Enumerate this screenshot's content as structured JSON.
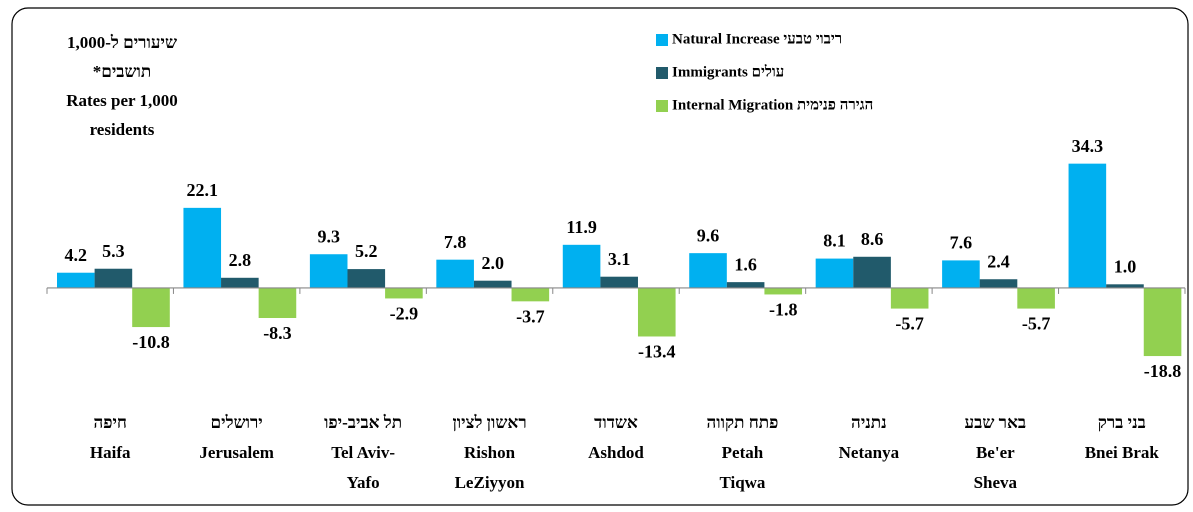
{
  "chart_data": {
    "type": "bar",
    "axis_note": [
      "שיעורים ל-1,000",
      "תושבים*",
      "Rates per 1,000",
      "residents"
    ],
    "categories": [
      [
        "חיפה",
        "Haifa"
      ],
      [
        "ירושלים",
        "Jerusalem"
      ],
      [
        "תל אביב-יפו",
        "Tel Aviv-",
        "Yafo"
      ],
      [
        "ראשון לציון",
        "Rishon",
        "LeZiyyon"
      ],
      [
        "אשדוד",
        "Ashdod"
      ],
      [
        "פתח תקווה",
        "Petah",
        "Tiqwa"
      ],
      [
        "נתניה",
        "Netanya"
      ],
      [
        "באר שבע",
        "Be'er",
        "Sheva"
      ],
      [
        "בני ברק",
        "Bnei Brak"
      ]
    ],
    "series": [
      {
        "name": "Natural Increase ריבוי טבעי",
        "color": "#00b0f0",
        "values": [
          4.2,
          22.1,
          9.3,
          7.8,
          11.9,
          9.6,
          8.1,
          7.6,
          34.3
        ],
        "value_labels": [
          "4.2",
          "22.1",
          "9.3",
          "7.8",
          "11.9",
          "9.6",
          "8.1",
          "7.6",
          "34.3"
        ]
      },
      {
        "name": "Immigrants עולים",
        "color": "#215a6b",
        "values": [
          5.3,
          2.8,
          5.2,
          2.0,
          3.1,
          1.6,
          8.6,
          2.4,
          1.0
        ],
        "value_labels": [
          "5.3",
          "2.8",
          "5.2",
          "2.0",
          "3.1",
          "1.6",
          "8.6",
          "2.4",
          "1.0"
        ]
      },
      {
        "name": "Internal Migration הגירה פנימית",
        "color": "#92d050",
        "values": [
          -10.8,
          -8.3,
          -2.9,
          -3.7,
          -13.4,
          -1.8,
          -5.7,
          -5.7,
          -18.8
        ],
        "value_labels": [
          "-10.8",
          "-8.3",
          "-2.9",
          "-3.7",
          "-13.4",
          "-1.8",
          "-5.7",
          "-5.7",
          "-18.8"
        ]
      }
    ],
    "ylim": [
      -20,
      40
    ],
    "legend": "top-right"
  }
}
